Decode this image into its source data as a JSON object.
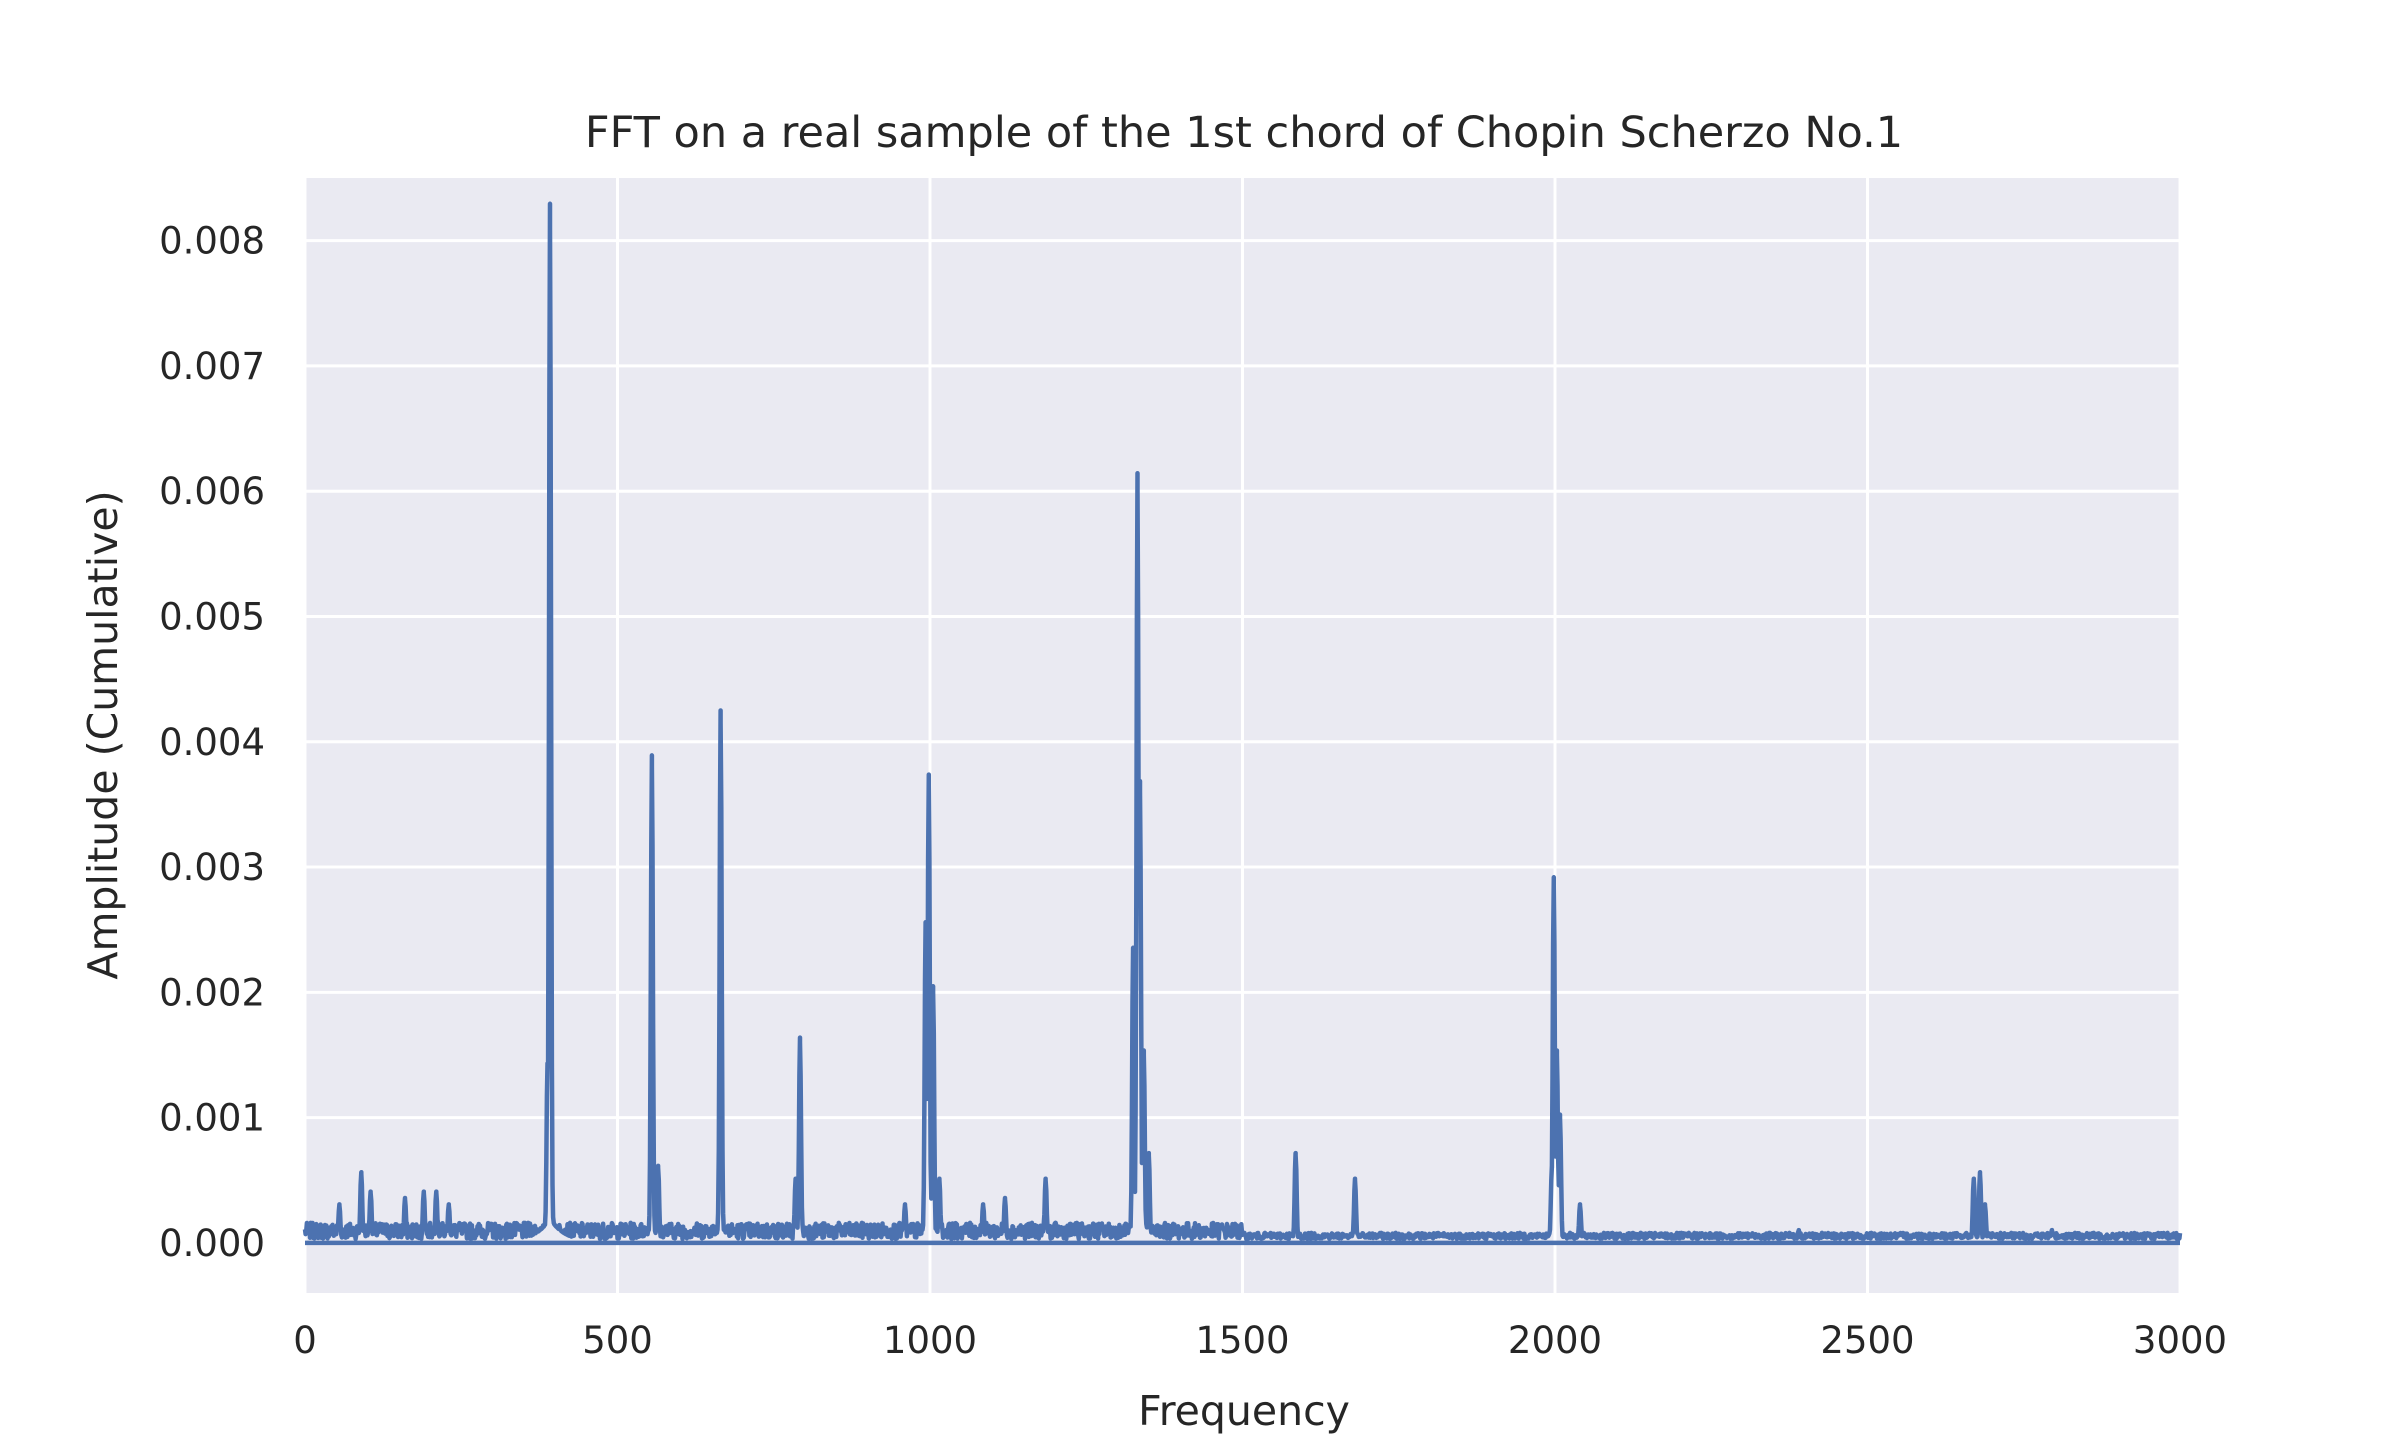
{
  "chart_data": {
    "type": "line",
    "title": "FFT on a real sample of the 1st chord of Chopin Scherzo No.1",
    "xlabel": "Frequency",
    "ylabel": "Amplitude (Cumulative)",
    "xlim": [
      0,
      3000
    ],
    "ylim": [
      -0.0004,
      0.0085
    ],
    "xticks": [
      0,
      500,
      1000,
      1500,
      2000,
      2500,
      3000
    ],
    "xtick_labels": [
      "0",
      "500",
      "1000",
      "1500",
      "2000",
      "2500",
      "3000"
    ],
    "yticks": [
      0,
      0.001,
      0.002,
      0.003,
      0.004,
      0.005,
      0.006,
      0.007,
      0.008
    ],
    "ytick_labels": [
      "0.000",
      "0.001",
      "0.002",
      "0.003",
      "0.004",
      "0.005",
      "0.006",
      "0.007",
      "0.008"
    ],
    "grid": true,
    "colors": {
      "line": "#4c72b0",
      "plot_bg": "#eaeaf2",
      "grid": "#ffffff"
    },
    "baseline": {
      "y": 0,
      "x_range": [
        0,
        3000
      ]
    },
    "noise_floor": 8e-05,
    "peaks": [
      {
        "x": 55,
        "y": 0.0003
      },
      {
        "x": 90,
        "y": 0.00055
      },
      {
        "x": 105,
        "y": 0.0004
      },
      {
        "x": 160,
        "y": 0.00035
      },
      {
        "x": 190,
        "y": 0.0004
      },
      {
        "x": 210,
        "y": 0.0004
      },
      {
        "x": 230,
        "y": 0.0003
      },
      {
        "x": 392,
        "y": 0.0081
      },
      {
        "x": 388,
        "y": 0.0014
      },
      {
        "x": 555,
        "y": 0.0038
      },
      {
        "x": 565,
        "y": 0.0006
      },
      {
        "x": 665,
        "y": 0.00415
      },
      {
        "x": 785,
        "y": 0.0005
      },
      {
        "x": 792,
        "y": 0.0016
      },
      {
        "x": 960,
        "y": 0.0003
      },
      {
        "x": 993,
        "y": 0.0025
      },
      {
        "x": 998,
        "y": 0.00365
      },
      {
        "x": 1005,
        "y": 0.002
      },
      {
        "x": 1015,
        "y": 0.0005
      },
      {
        "x": 1085,
        "y": 0.0003
      },
      {
        "x": 1120,
        "y": 0.00035
      },
      {
        "x": 1185,
        "y": 0.0005
      },
      {
        "x": 1325,
        "y": 0.0023
      },
      {
        "x": 1332,
        "y": 0.006
      },
      {
        "x": 1336,
        "y": 0.0036
      },
      {
        "x": 1342,
        "y": 0.0015
      },
      {
        "x": 1350,
        "y": 0.0007
      },
      {
        "x": 1585,
        "y": 0.0007
      },
      {
        "x": 1680,
        "y": 0.0005
      },
      {
        "x": 1995,
        "y": 0.0006
      },
      {
        "x": 1998,
        "y": 0.00285
      },
      {
        "x": 2003,
        "y": 0.0015
      },
      {
        "x": 2008,
        "y": 0.001
      },
      {
        "x": 2040,
        "y": 0.0003
      },
      {
        "x": 2390,
        "y": 0.0001
      },
      {
        "x": 2670,
        "y": 0.0005
      },
      {
        "x": 2680,
        "y": 0.00055
      },
      {
        "x": 2688,
        "y": 0.0003
      },
      {
        "x": 2795,
        "y": 0.0001
      }
    ]
  }
}
